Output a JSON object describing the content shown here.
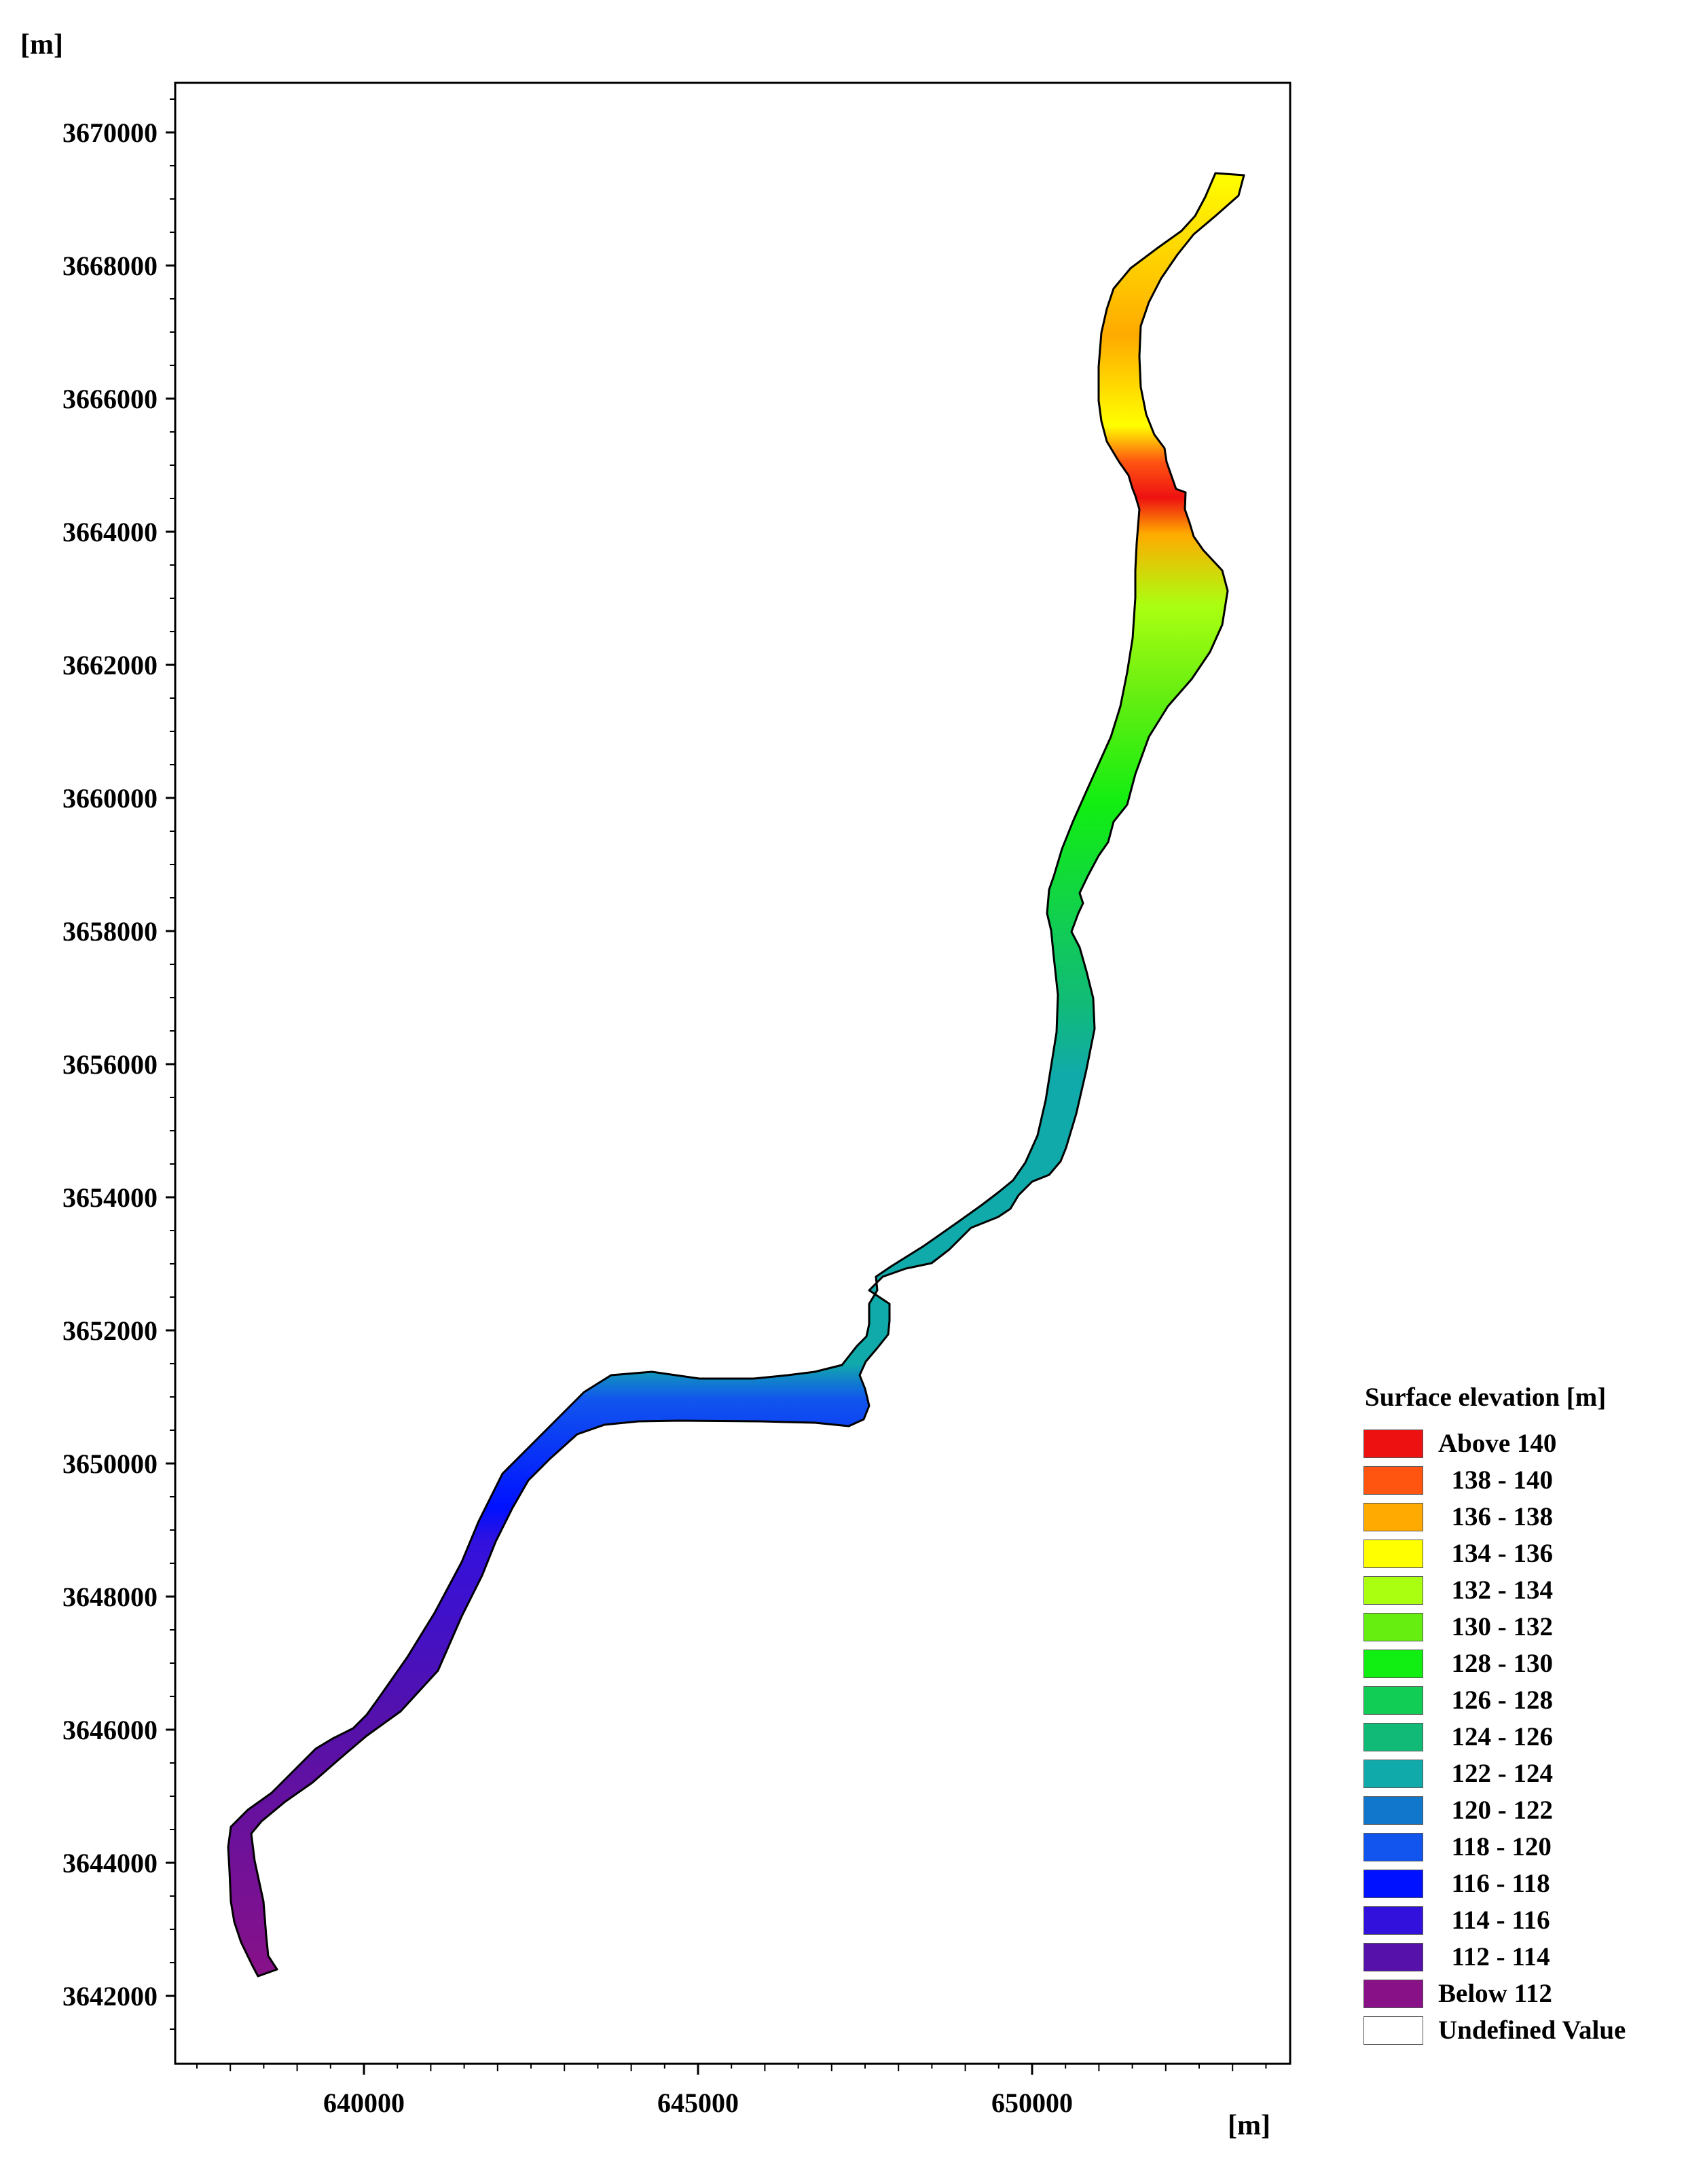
{
  "axes": {
    "x_unit": "[m]",
    "y_unit": "[m]",
    "x_ticks": [
      "640000",
      "645000",
      "650000"
    ],
    "x_tick_values": [
      640000,
      645000,
      650000
    ],
    "y_ticks": [
      "3670000",
      "3668000",
      "3666000",
      "3664000",
      "3662000",
      "3660000",
      "3658000",
      "3656000",
      "3654000",
      "3652000",
      "3650000",
      "3648000",
      "3646000",
      "3644000",
      "3642000"
    ],
    "y_tick_values": [
      3670000,
      3668000,
      3666000,
      3664000,
      3662000,
      3660000,
      3658000,
      3656000,
      3654000,
      3652000,
      3650000,
      3648000,
      3646000,
      3644000,
      3642000
    ]
  },
  "legend": {
    "title": "Surface elevation [m]",
    "items": [
      {
        "label": "Above 140",
        "color": "#ee1111"
      },
      {
        "label": "  138 - 140",
        "color": "#ff5511"
      },
      {
        "label": "  136 - 138",
        "color": "#ffaa00"
      },
      {
        "label": "  134 - 136",
        "color": "#ffff00"
      },
      {
        "label": "  132 - 134",
        "color": "#aaff11"
      },
      {
        "label": "  130 - 132",
        "color": "#66ee11"
      },
      {
        "label": "  128 - 130",
        "color": "#11ee11"
      },
      {
        "label": "  126 - 128",
        "color": "#11cc55"
      },
      {
        "label": "  124 - 126",
        "color": "#11bb77"
      },
      {
        "label": "  122 - 124",
        "color": "#11aaaa"
      },
      {
        "label": "  120 - 122",
        "color": "#1177cc"
      },
      {
        "label": "  118 - 120",
        "color": "#1155ee"
      },
      {
        "label": "  116 - 118",
        "color": "#0011ff"
      },
      {
        "label": "  114 - 116",
        "color": "#3311dd"
      },
      {
        "label": "  112 - 114",
        "color": "#5511aa"
      },
      {
        "label": "Below 112",
        "color": "#881188"
      },
      {
        "label": "Undefined Value",
        "color": "#ffffff"
      }
    ]
  }
}
